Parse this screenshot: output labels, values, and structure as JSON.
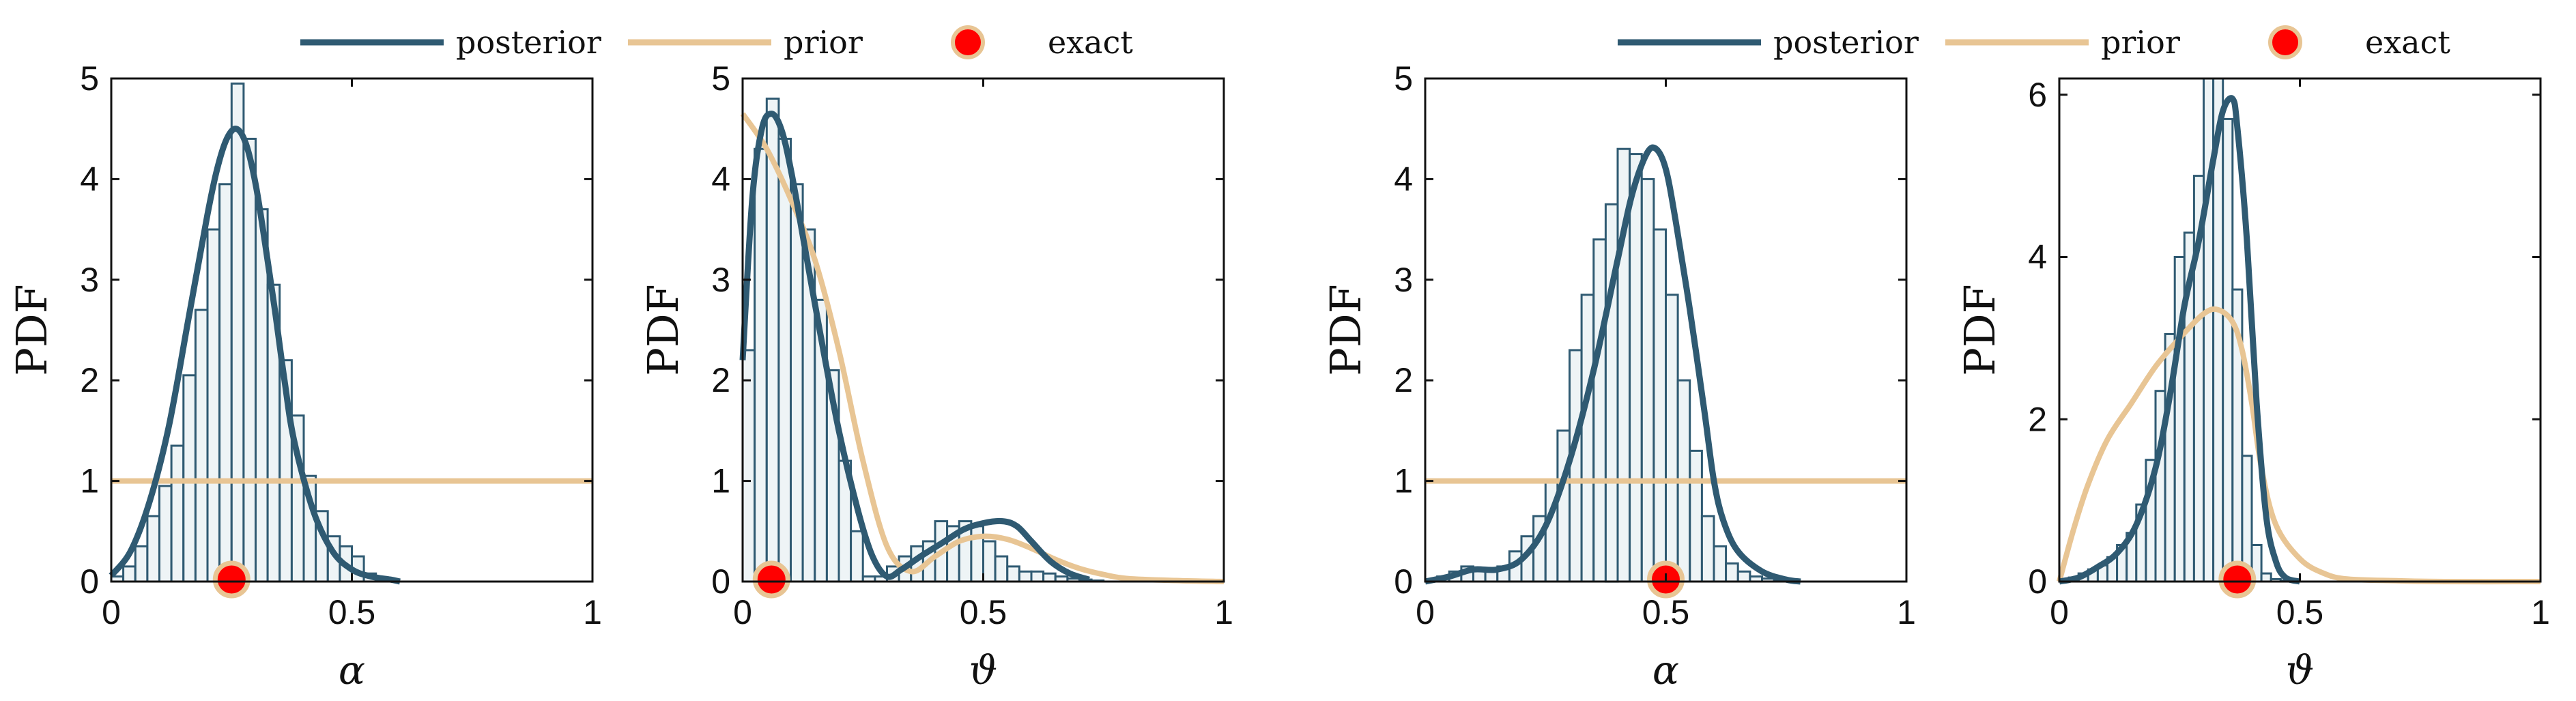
{
  "colors": {
    "posterior": "#2f5a72",
    "prior": "#e8c594",
    "exact_fill": "#ff0000",
    "exact_edge": "#e8c594",
    "hist_fill": "#eef4f6",
    "hist_edge": "#2f5a72"
  },
  "legends": [
    {
      "items": [
        {
          "key": "posterior",
          "label": "posterior"
        },
        {
          "key": "prior",
          "label": "prior"
        },
        {
          "key": "exact",
          "label": "exact"
        }
      ]
    },
    {
      "items": [
        {
          "key": "posterior",
          "label": "posterior"
        },
        {
          "key": "prior",
          "label": "prior"
        },
        {
          "key": "exact",
          "label": "exact"
        }
      ]
    }
  ],
  "chart_data": [
    {
      "type": "histogram+line",
      "xlabel": "α",
      "ylabel": "PDF",
      "xlim": [
        0,
        1
      ],
      "ylim": [
        0,
        5
      ],
      "xticks": [
        {
          "v": 0,
          "label": "0"
        },
        {
          "v": 0.5,
          "label": "0.5"
        },
        {
          "v": 1,
          "label": "1"
        }
      ],
      "yticks": [
        {
          "v": 0,
          "label": "0"
        },
        {
          "v": 1,
          "label": "1"
        },
        {
          "v": 2,
          "label": "2"
        },
        {
          "v": 3,
          "label": "3"
        },
        {
          "v": 4,
          "label": "4"
        },
        {
          "v": 5,
          "label": "5"
        }
      ],
      "hist": {
        "start": 0.0,
        "width": 0.025,
        "values": [
          0.05,
          0.15,
          0.35,
          0.65,
          0.95,
          1.35,
          2.05,
          2.7,
          3.5,
          3.95,
          4.95,
          4.4,
          3.7,
          2.95,
          2.2,
          1.65,
          1.05,
          0.7,
          0.45,
          0.35,
          0.25,
          0.08,
          0.03
        ]
      },
      "posterior": {
        "x": [
          0,
          0.04,
          0.08,
          0.12,
          0.16,
          0.2,
          0.22,
          0.24,
          0.26,
          0.28,
          0.3,
          0.32,
          0.34,
          0.36,
          0.38,
          0.42,
          0.46,
          0.5,
          0.54,
          0.58,
          0.6
        ],
        "y": [
          0.06,
          0.3,
          0.8,
          1.55,
          2.6,
          3.65,
          4.1,
          4.4,
          4.5,
          4.35,
          3.95,
          3.35,
          2.7,
          2.0,
          1.4,
          0.7,
          0.3,
          0.12,
          0.05,
          0.02,
          0.0
        ]
      },
      "prior": {
        "x": [
          0,
          1
        ],
        "y": [
          1,
          1
        ]
      },
      "exact": {
        "x": 0.25,
        "y": 0.02
      }
    },
    {
      "type": "histogram+line",
      "xlabel": "ϑ",
      "ylabel": "PDF",
      "xlim": [
        0,
        1
      ],
      "ylim": [
        0,
        5
      ],
      "xticks": [
        {
          "v": 0,
          "label": "0"
        },
        {
          "v": 0.5,
          "label": "0.5"
        },
        {
          "v": 1,
          "label": "1"
        }
      ],
      "yticks": [
        {
          "v": 0,
          "label": "0"
        },
        {
          "v": 1,
          "label": "1"
        },
        {
          "v": 2,
          "label": "2"
        },
        {
          "v": 3,
          "label": "3"
        },
        {
          "v": 4,
          "label": "4"
        },
        {
          "v": 5,
          "label": "5"
        }
      ],
      "hist": {
        "start": 0.0,
        "width": 0.025,
        "values": [
          2.3,
          4.3,
          4.8,
          4.4,
          3.95,
          3.5,
          2.8,
          2.1,
          1.2,
          0.5,
          0.05,
          0.05,
          0.15,
          0.25,
          0.35,
          0.4,
          0.6,
          0.55,
          0.6,
          0.55,
          0.4,
          0.25,
          0.15,
          0.1,
          0.1,
          0.08,
          0.05,
          0.03,
          0.02,
          0.01
        ]
      },
      "posterior": {
        "x": [
          0,
          0.02,
          0.04,
          0.06,
          0.08,
          0.1,
          0.13,
          0.16,
          0.2,
          0.24,
          0.27,
          0.3,
          0.33,
          0.37,
          0.42,
          0.46,
          0.5,
          0.54,
          0.57,
          0.6,
          0.64,
          0.68,
          0.72
        ],
        "y": [
          2.2,
          3.8,
          4.5,
          4.65,
          4.5,
          4.1,
          3.3,
          2.5,
          1.5,
          0.7,
          0.25,
          0.05,
          0.12,
          0.25,
          0.4,
          0.52,
          0.58,
          0.6,
          0.55,
          0.4,
          0.2,
          0.08,
          0.02
        ]
      },
      "prior": {
        "x": [
          0,
          0.05,
          0.1,
          0.15,
          0.2,
          0.25,
          0.3,
          0.35,
          0.4,
          0.45,
          0.5,
          0.55,
          0.6,
          0.65,
          0.7,
          0.75,
          0.8,
          0.9,
          1.0
        ],
        "y": [
          4.65,
          4.3,
          3.8,
          3.2,
          2.3,
          1.2,
          0.35,
          0.1,
          0.25,
          0.4,
          0.45,
          0.42,
          0.33,
          0.22,
          0.13,
          0.07,
          0.03,
          0.01,
          0.0
        ]
      },
      "exact": {
        "x": 0.06,
        "y": 0.02
      }
    },
    {
      "type": "histogram+line",
      "xlabel": "α",
      "ylabel": "PDF",
      "xlim": [
        0,
        1
      ],
      "ylim": [
        0,
        5
      ],
      "xticks": [
        {
          "v": 0,
          "label": "0"
        },
        {
          "v": 0.5,
          "label": "0.5"
        },
        {
          "v": 1,
          "label": "1"
        }
      ],
      "yticks": [
        {
          "v": 0,
          "label": "0"
        },
        {
          "v": 1,
          "label": "1"
        },
        {
          "v": 2,
          "label": "2"
        },
        {
          "v": 3,
          "label": "3"
        },
        {
          "v": 4,
          "label": "4"
        },
        {
          "v": 5,
          "label": "5"
        }
      ],
      "hist": {
        "start": 0.0,
        "width": 0.025,
        "values": [
          0.02,
          0.05,
          0.1,
          0.15,
          0.12,
          0.1,
          0.15,
          0.3,
          0.45,
          0.65,
          1.0,
          1.5,
          2.3,
          2.85,
          3.4,
          3.75,
          4.3,
          4.25,
          4.0,
          3.5,
          2.85,
          2.0,
          1.3,
          0.65,
          0.35,
          0.18,
          0.1,
          0.05,
          0.03,
          0.02,
          0.01
        ]
      },
      "posterior": {
        "x": [
          0,
          0.05,
          0.1,
          0.15,
          0.2,
          0.25,
          0.3,
          0.35,
          0.4,
          0.43,
          0.46,
          0.48,
          0.5,
          0.52,
          0.55,
          0.58,
          0.6,
          0.62,
          0.65,
          0.7,
          0.75,
          0.78
        ],
        "y": [
          0.0,
          0.05,
          0.12,
          0.12,
          0.22,
          0.55,
          1.2,
          2.1,
          3.2,
          3.85,
          4.25,
          4.3,
          4.1,
          3.6,
          2.7,
          1.7,
          1.0,
          0.6,
          0.3,
          0.1,
          0.02,
          0.0
        ]
      },
      "prior": {
        "x": [
          0,
          1
        ],
        "y": [
          1,
          1
        ]
      },
      "exact": {
        "x": 0.5,
        "y": 0.02
      }
    },
    {
      "type": "histogram+line",
      "xlabel": "ϑ",
      "ylabel": "PDF",
      "xlim": [
        0,
        1
      ],
      "ylim": [
        0,
        6.2
      ],
      "xticks": [
        {
          "v": 0,
          "label": "0"
        },
        {
          "v": 0.5,
          "label": "0.5"
        },
        {
          "v": 1,
          "label": "1"
        }
      ],
      "yticks": [
        {
          "v": 0,
          "label": "0"
        },
        {
          "v": 2,
          "label": "2"
        },
        {
          "v": 4,
          "label": "4"
        },
        {
          "v": 6,
          "label": "6"
        }
      ],
      "hist": {
        "start": 0.0,
        "width": 0.02,
        "values": [
          0.02,
          0.05,
          0.1,
          0.15,
          0.2,
          0.3,
          0.45,
          0.6,
          0.95,
          1.5,
          2.35,
          3.05,
          4.0,
          4.3,
          5.0,
          6.2,
          6.2,
          5.7,
          3.6,
          1.55,
          0.45,
          0.1,
          0.03,
          0.01
        ]
      },
      "posterior": {
        "x": [
          0,
          0.04,
          0.08,
          0.12,
          0.16,
          0.2,
          0.23,
          0.26,
          0.29,
          0.32,
          0.34,
          0.36,
          0.37,
          0.39,
          0.41,
          0.43,
          0.45,
          0.47,
          0.5
        ],
        "y": [
          0.0,
          0.05,
          0.18,
          0.35,
          0.7,
          1.4,
          2.3,
          3.4,
          4.2,
          5.2,
          5.8,
          5.95,
          5.6,
          4.2,
          2.2,
          0.8,
          0.25,
          0.05,
          0.0
        ]
      },
      "prior": {
        "x": [
          0,
          0.03,
          0.06,
          0.1,
          0.15,
          0.2,
          0.25,
          0.3,
          0.33,
          0.36,
          0.38,
          0.4,
          0.42,
          0.45,
          0.5,
          0.55,
          0.6,
          0.7,
          0.8,
          1.0
        ],
        "y": [
          0.0,
          0.65,
          1.2,
          1.75,
          2.2,
          2.65,
          3.0,
          3.3,
          3.35,
          3.2,
          2.85,
          2.2,
          1.4,
          0.7,
          0.28,
          0.1,
          0.03,
          0.01,
          0.0,
          0.0
        ]
      },
      "exact": {
        "x": 0.37,
        "y": 0.02
      }
    }
  ]
}
